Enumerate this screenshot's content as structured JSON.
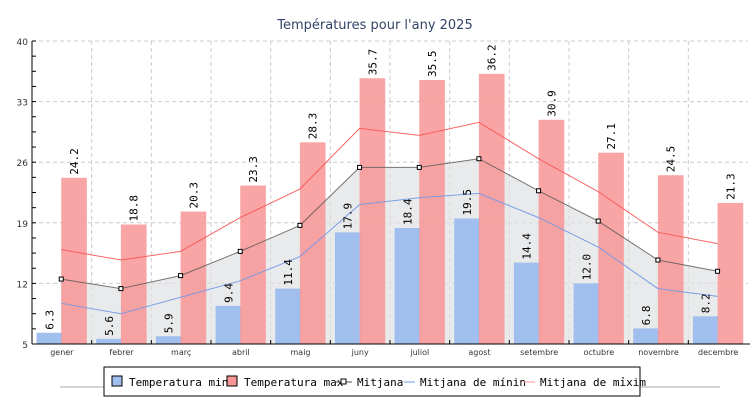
{
  "chart_data": {
    "type": "bar",
    "title": "Températures pour l'any 2025",
    "categories": [
      "gener",
      "febrer",
      "març",
      "abril",
      "maig",
      "juny",
      "juliol",
      "agost",
      "setembre",
      "octubre",
      "novembre",
      "decembre"
    ],
    "ylim": [
      5,
      40
    ],
    "yticks": [
      "5",
      "12",
      "19",
      "26",
      "33",
      "40"
    ],
    "grid": true,
    "legend_position": "bottom",
    "series": [
      {
        "name": "Temperatura min",
        "type": "bar",
        "color": "#a0bfee",
        "values": [
          6.3,
          5.6,
          5.9,
          9.4,
          11.4,
          17.9,
          18.4,
          19.5,
          14.4,
          12.0,
          6.8,
          8.2
        ],
        "labels": [
          "6.3",
          "5.6",
          "5.9",
          "9.4",
          "11.4",
          "17.9",
          "18.4",
          "19.5",
          "14.4",
          "12.0",
          "6.8",
          "8.2"
        ]
      },
      {
        "name": "Temperatura max",
        "type": "bar",
        "color": "#f99595",
        "values": [
          24.2,
          18.8,
          20.3,
          23.3,
          28.3,
          35.7,
          35.5,
          36.2,
          30.9,
          27.1,
          24.5,
          21.3
        ],
        "labels": [
          "24.2",
          "18.8",
          "20.3",
          "23.3",
          "28.3",
          "35.7",
          "35.5",
          "36.2",
          "30.9",
          "27.1",
          "24.5",
          "21.3"
        ]
      },
      {
        "name": "Mitjana",
        "type": "line",
        "color": "#555555",
        "values": [
          12.5,
          11.4,
          12.9,
          15.7,
          18.7,
          25.4,
          25.4,
          26.4,
          22.7,
          19.2,
          14.7,
          13.4
        ]
      },
      {
        "name": "Mitjana de mínin",
        "type": "line",
        "color": "#6f98e8",
        "values": [
          9.7,
          8.5,
          10.4,
          12.3,
          15.1,
          21.1,
          21.9,
          22.4,
          19.6,
          16.2,
          11.4,
          10.5
        ]
      },
      {
        "name": "Mitjana de màxim",
        "type": "line",
        "color": "#f55555",
        "values": [
          15.9,
          14.7,
          15.7,
          19.6,
          22.9,
          29.9,
          29.1,
          30.6,
          26.4,
          22.6,
          17.9,
          16.6
        ]
      }
    ],
    "legend_labels": [
      "Temperatura min",
      "Temperatura max",
      "Mitjana",
      "Mitjana de mínin",
      "Mitjana de mỉxim"
    ]
  }
}
